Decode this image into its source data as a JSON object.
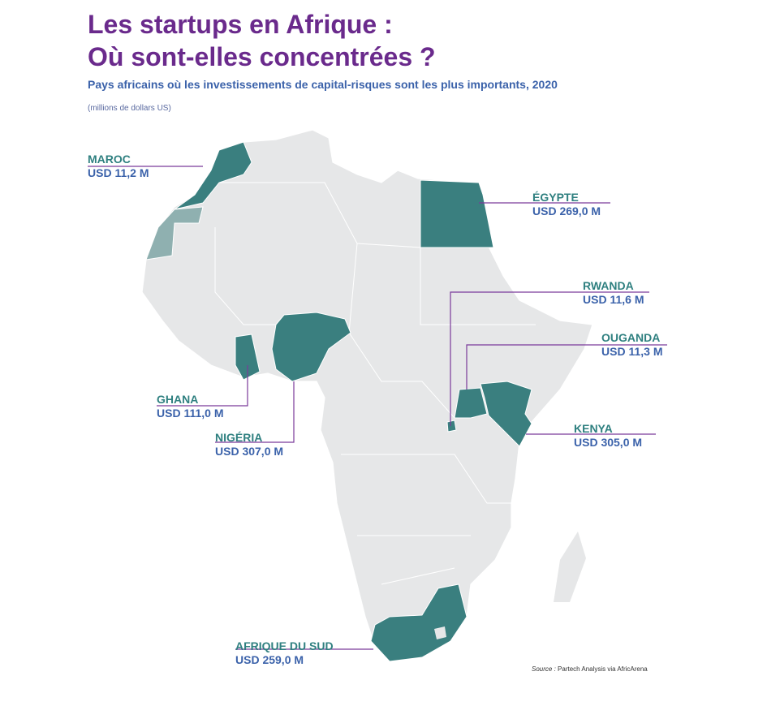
{
  "title_line1": "Les startups en Afrique :",
  "title_line2": "Où sont-elles concentrées ?",
  "subtitle": "Pays africains où les investissements de capital-risques sont les plus importants, 2020",
  "unit": "(millions de dollars US)",
  "source_label": "Source :",
  "source_text": "Partech Analysis via AfricArena",
  "colors": {
    "highlight": "#3a7f7f",
    "disputed": "#8fb0b0",
    "land": "#e6e7e8",
    "border": "#ffffff",
    "leader": "#7a3a9a",
    "title": "#6a2a8c",
    "value": "#3b62aa"
  },
  "countries": [
    {
      "name": "MAROC",
      "value": "USD 11,2 M"
    },
    {
      "name": "ÉGYPTE",
      "value": "USD 269,0 M"
    },
    {
      "name": "RWANDA",
      "value": "USD 11,6 M"
    },
    {
      "name": "OUGANDA",
      "value": "USD 11,3 M"
    },
    {
      "name": "GHANA",
      "value": "USD 111,0 M"
    },
    {
      "name": "NIGÉRIA",
      "value": "USD 307,0 M"
    },
    {
      "name": "KENYA",
      "value": "USD 305,0 M"
    },
    {
      "name": "AFRIQUE DU SUD",
      "value": "USD 259,0 M"
    }
  ]
}
